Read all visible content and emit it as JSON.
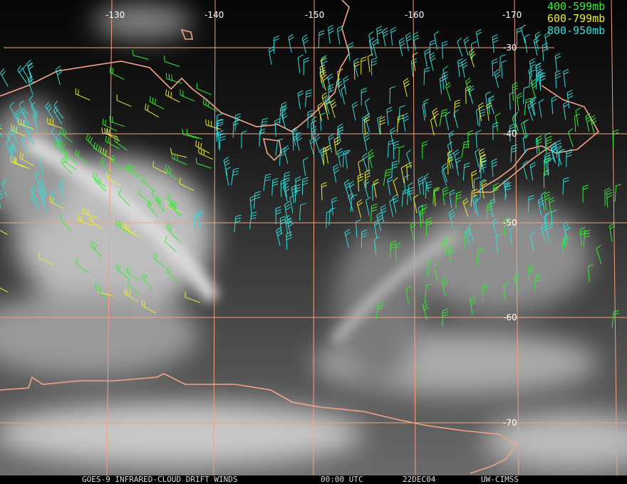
{
  "map": {
    "longitudes": [
      -130,
      -140,
      -150,
      -160,
      -170
    ],
    "latitudes": [
      -30,
      -40,
      -50,
      -60,
      -70
    ],
    "legend": [
      "400-599mb",
      "600-799mb",
      "800-950mb"
    ],
    "footer": [
      "GOES-9 INFRARED-CLOUD DRIFT WINDS",
      "00:00 UTC",
      "22DEC04",
      "UW-CIMSS"
    ]
  }
}
